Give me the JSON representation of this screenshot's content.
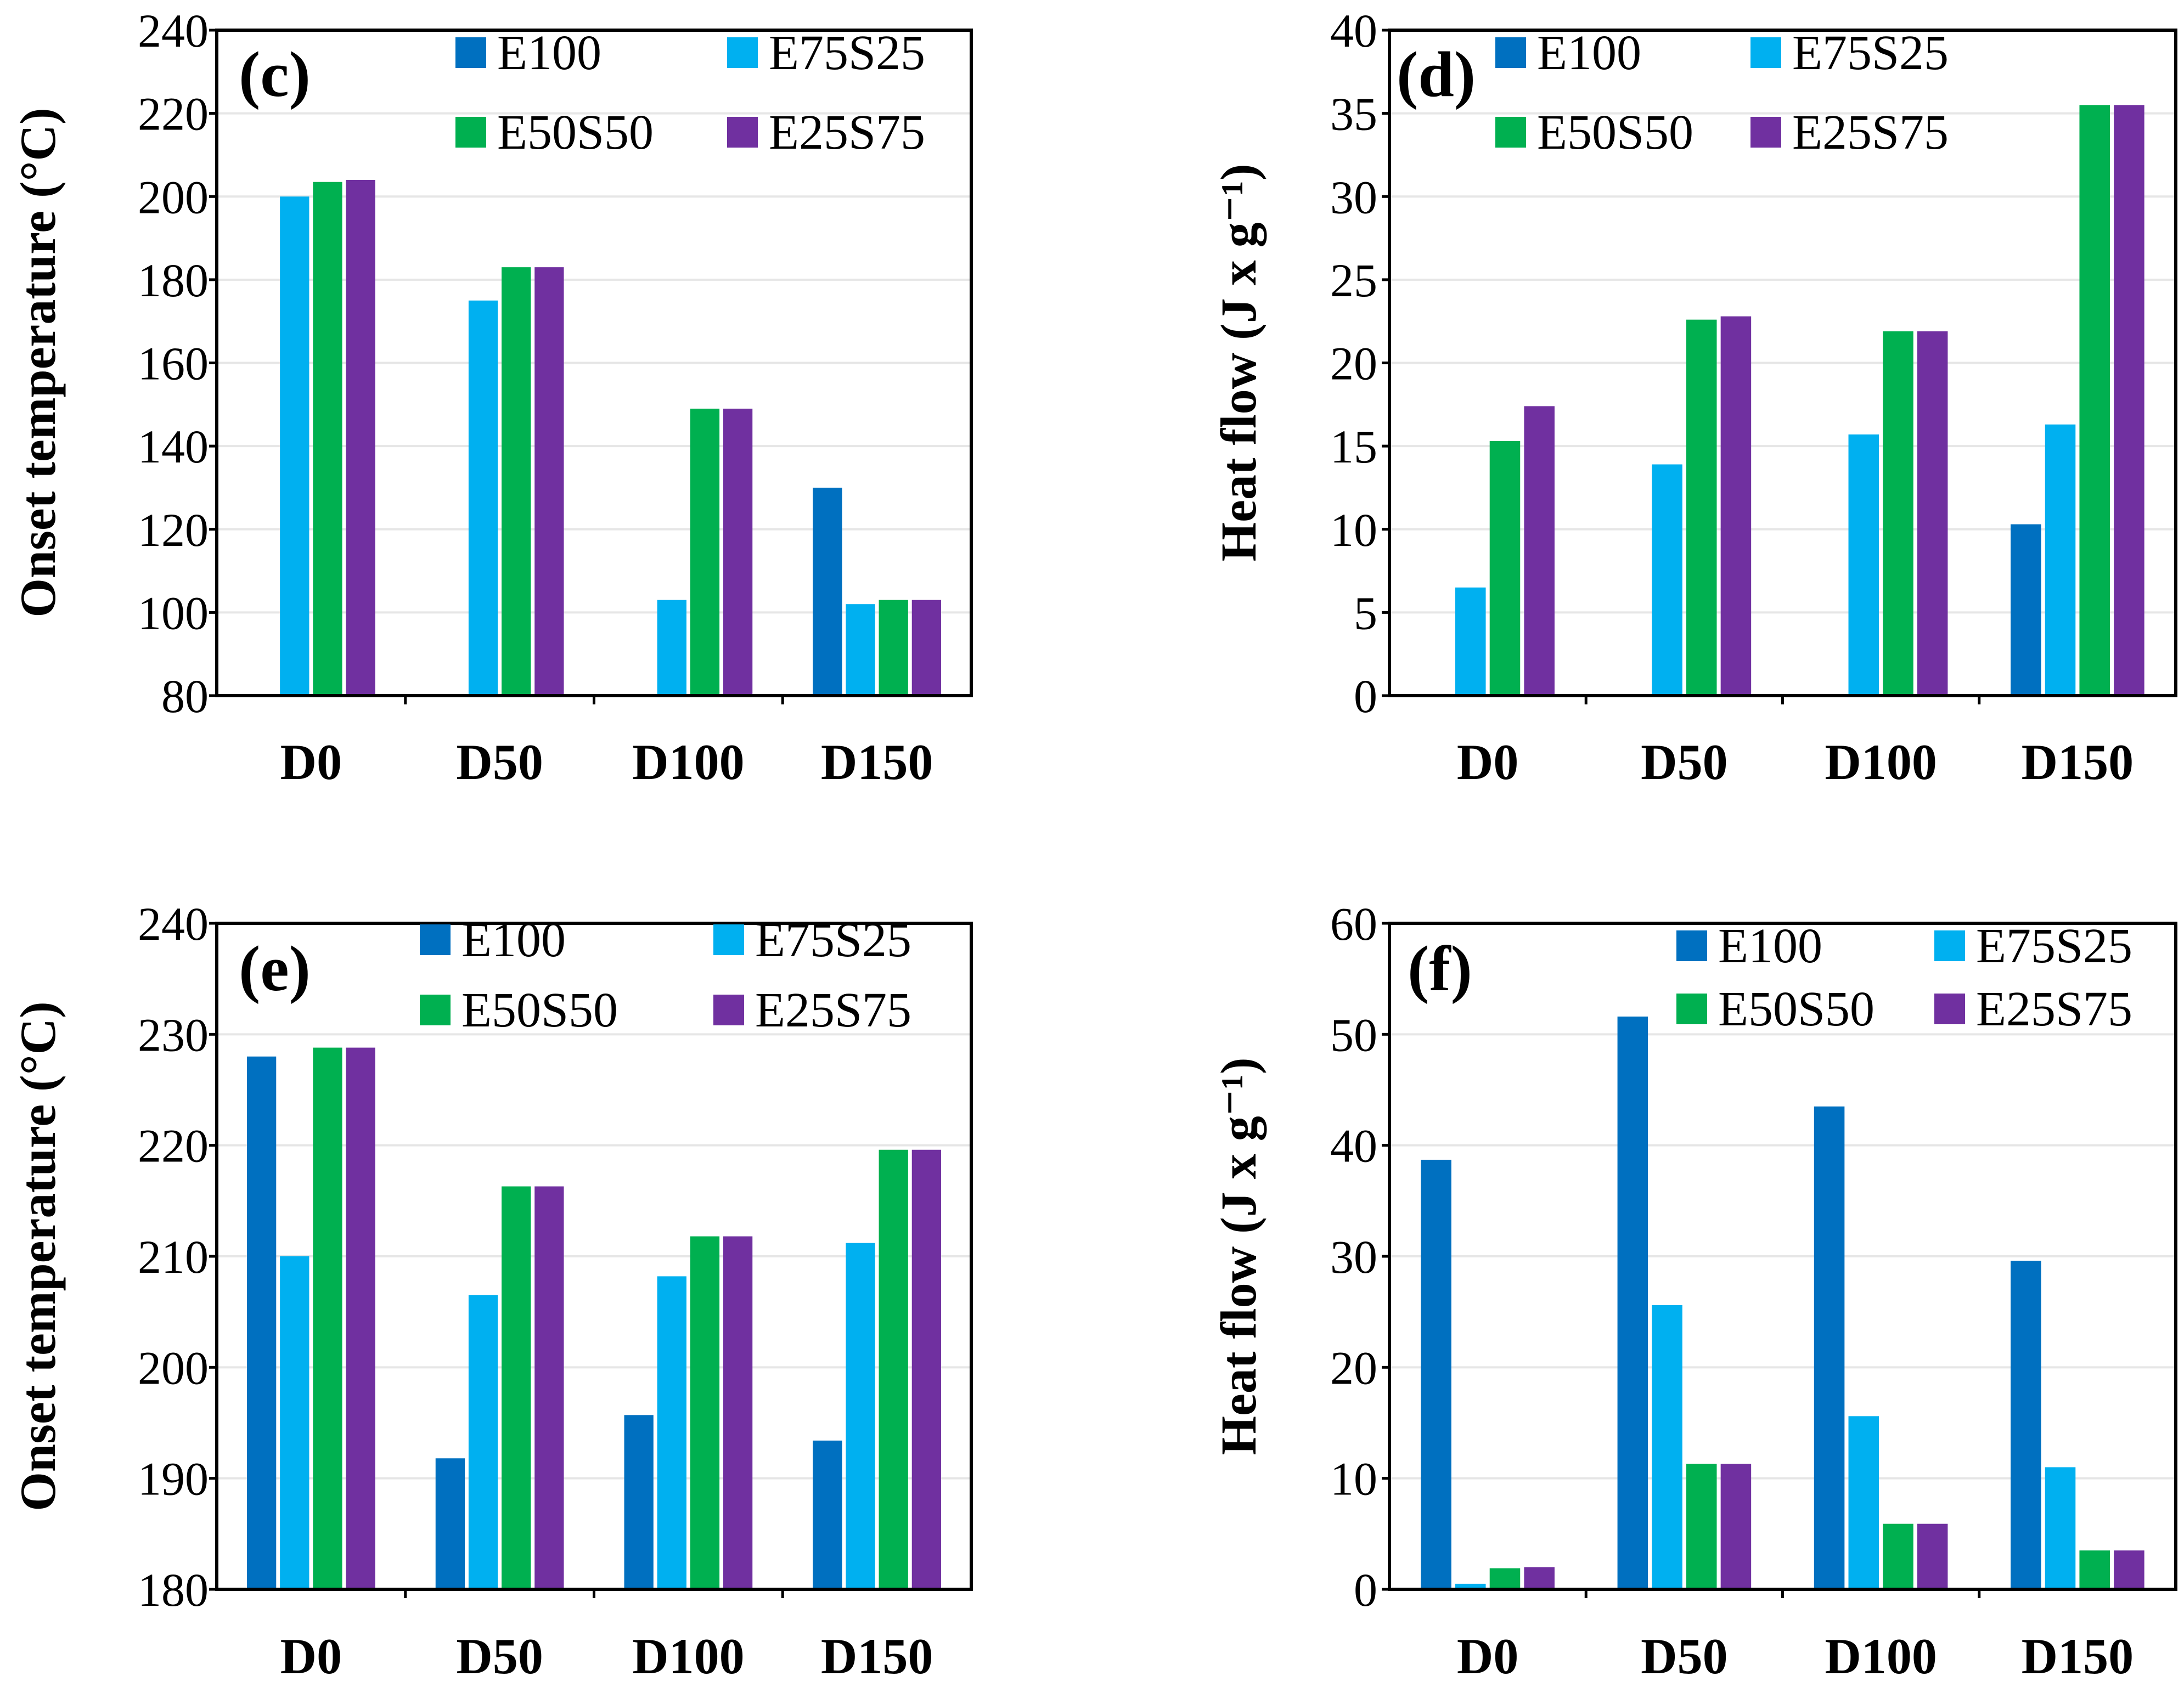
{
  "colors": {
    "E100": "#0070c0",
    "E75S25": "#00b0f0",
    "E50S50": "#00b050",
    "E25S75": "#7030a0"
  },
  "chart_data": [
    {
      "id": "c",
      "type": "bar",
      "panel_label": "(c)",
      "ylabel": "Onset temperature (°C)",
      "ylim": [
        80,
        240
      ],
      "yticks": [
        80,
        100,
        120,
        140,
        160,
        180,
        200,
        220,
        240
      ],
      "ytick_labels": [
        "80",
        "100",
        "120",
        "140",
        "160",
        "180",
        "200",
        "220",
        "240"
      ],
      "categories": [
        "D0",
        "D50",
        "D100",
        "D150"
      ],
      "legend": [
        "E100",
        "E75S25",
        "E50S50",
        "E25S75"
      ],
      "series": [
        {
          "name": "E100",
          "values": [
            null,
            null,
            null,
            130
          ]
        },
        {
          "name": "E75S25",
          "values": [
            200,
            175,
            103,
            102
          ]
        },
        {
          "name": "E50S50",
          "values": [
            203.5,
            183,
            149,
            103
          ]
        },
        {
          "name": "E25S75",
          "values": [
            204,
            183,
            149,
            103
          ]
        }
      ]
    },
    {
      "id": "d",
      "type": "bar",
      "panel_label": "(d)",
      "ylabel": "Heat flow (J x g⁻¹)",
      "ylim": [
        0,
        40
      ],
      "yticks": [
        0,
        5,
        10,
        15,
        20,
        25,
        30,
        35,
        40
      ],
      "ytick_labels": [
        "0",
        "5",
        "10",
        "15",
        "20",
        "25",
        "30",
        "35",
        "40"
      ],
      "categories": [
        "D0",
        "D50",
        "D100",
        "D150"
      ],
      "legend": [
        "E100",
        "E75S25",
        "E50S50",
        "E25S75"
      ],
      "series": [
        {
          "name": "E100",
          "values": [
            null,
            null,
            null,
            10.3
          ]
        },
        {
          "name": "E75S25",
          "values": [
            6.5,
            13.9,
            15.7,
            16.3
          ]
        },
        {
          "name": "E50S50",
          "values": [
            15.3,
            22.6,
            21.9,
            35.5
          ]
        },
        {
          "name": "E25S75",
          "values": [
            17.4,
            22.8,
            21.9,
            35.5
          ]
        }
      ]
    },
    {
      "id": "e",
      "type": "bar",
      "panel_label": "(e)",
      "ylabel": "Onset temperature (°C)",
      "ylim": [
        180,
        240
      ],
      "yticks": [
        180,
        190,
        200,
        210,
        220,
        230,
        240
      ],
      "ytick_labels": [
        "180",
        "190",
        "200",
        "210",
        "220",
        "230",
        "240"
      ],
      "categories": [
        "D0",
        "D50",
        "D100",
        "D150"
      ],
      "legend": [
        "E100",
        "E75S25",
        "E50S50",
        "E25S75"
      ],
      "series": [
        {
          "name": "E100",
          "values": [
            228,
            191.8,
            195.7,
            193.4
          ]
        },
        {
          "name": "E75S25",
          "values": [
            210,
            206.5,
            208.2,
            211.2
          ]
        },
        {
          "name": "E50S50",
          "values": [
            228.8,
            216.3,
            211.8,
            219.6
          ]
        },
        {
          "name": "E25S75",
          "values": [
            228.8,
            216.3,
            211.8,
            219.6
          ]
        }
      ]
    },
    {
      "id": "f",
      "type": "bar",
      "panel_label": "(f)",
      "ylabel": "Heat flow (J x g⁻¹)",
      "ylim": [
        0,
        60
      ],
      "yticks": [
        0,
        10,
        20,
        30,
        40,
        50,
        60
      ],
      "ytick_labels": [
        "0",
        "10",
        "20",
        "30",
        "40",
        "50",
        "60"
      ],
      "categories": [
        "D0",
        "D50",
        "D100",
        "D150"
      ],
      "legend": [
        "E100",
        "E75S25",
        "E50S50",
        "E25S75"
      ],
      "series": [
        {
          "name": "E100",
          "values": [
            38.7,
            51.6,
            43.5,
            29.6
          ]
        },
        {
          "name": "E75S25",
          "values": [
            0.5,
            25.6,
            15.6,
            11
          ]
        },
        {
          "name": "E50S50",
          "values": [
            1.9,
            11.3,
            5.9,
            3.5
          ]
        },
        {
          "name": "E25S75",
          "values": [
            2,
            11.3,
            5.9,
            3.5
          ]
        }
      ]
    }
  ]
}
